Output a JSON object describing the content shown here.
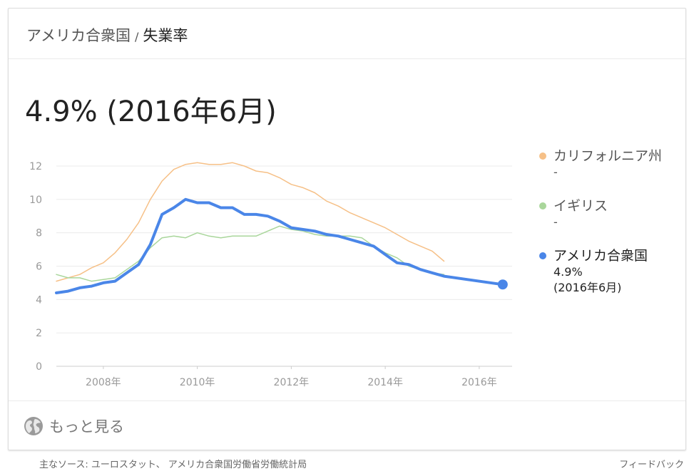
{
  "header": {
    "breadcrumb_country": "アメリカ合衆国",
    "separator": "/",
    "breadcrumb_metric": "失業率"
  },
  "headline_value": "4.9% (2016年6月)",
  "legend": [
    {
      "name": "カリフォルニア州",
      "value": "-",
      "color": "#f6c087"
    },
    {
      "name": "イギリス",
      "value": "-",
      "color": "#a9d69b"
    },
    {
      "name": "アメリカ合衆国",
      "value": "4.9%",
      "value_date": "(2016年6月)",
      "color": "#4a86e8"
    }
  ],
  "footer": {
    "more_label": "もっと見る",
    "source": "主なソース: ユーロスタット、 アメリカ合衆国労働省労働統計局",
    "feedback": "フィードバック"
  },
  "chart_data": {
    "type": "line",
    "title": "",
    "xlabel": "",
    "ylabel": "",
    "ylim": [
      0,
      12
    ],
    "xlim": [
      2007.0,
      2016.7
    ],
    "yticks": [
      "0",
      "2",
      "4",
      "6",
      "8",
      "10",
      "12"
    ],
    "xticks": [
      "2008年",
      "2010年",
      "2012年",
      "2014年",
      "2016年"
    ],
    "xtick_values": [
      2008,
      2010,
      2012,
      2014,
      2016
    ],
    "grid": true,
    "series": [
      {
        "name": "カリフォルニア州",
        "color": "#f6c087",
        "x": [
          2007.0,
          2007.25,
          2007.5,
          2007.75,
          2008.0,
          2008.25,
          2008.5,
          2008.75,
          2009.0,
          2009.25,
          2009.5,
          2009.75,
          2010.0,
          2010.25,
          2010.5,
          2010.75,
          2011.0,
          2011.25,
          2011.5,
          2011.75,
          2012.0,
          2012.25,
          2012.5,
          2012.75,
          2013.0,
          2013.25,
          2013.5,
          2013.75,
          2014.0,
          2014.25,
          2014.5,
          2014.75,
          2015.0,
          2015.25
        ],
        "y": [
          5.1,
          5.3,
          5.5,
          5.9,
          6.2,
          6.8,
          7.6,
          8.6,
          10.0,
          11.1,
          11.8,
          12.1,
          12.2,
          12.1,
          12.1,
          12.2,
          12.0,
          11.7,
          11.6,
          11.3,
          10.9,
          10.7,
          10.4,
          9.9,
          9.6,
          9.2,
          8.9,
          8.6,
          8.3,
          7.9,
          7.5,
          7.2,
          6.9,
          6.3
        ]
      },
      {
        "name": "イギリス",
        "color": "#a9d69b",
        "x": [
          2007.0,
          2007.25,
          2007.5,
          2007.75,
          2008.0,
          2008.25,
          2008.5,
          2008.75,
          2009.0,
          2009.25,
          2009.5,
          2009.75,
          2010.0,
          2010.25,
          2010.5,
          2010.75,
          2011.0,
          2011.25,
          2011.5,
          2011.75,
          2012.0,
          2012.25,
          2012.5,
          2012.75,
          2013.0,
          2013.25,
          2013.5,
          2013.75,
          2014.0,
          2014.25,
          2014.5,
          2014.75,
          2015.0,
          2015.25
        ],
        "y": [
          5.5,
          5.3,
          5.3,
          5.1,
          5.2,
          5.3,
          5.8,
          6.3,
          7.1,
          7.7,
          7.8,
          7.7,
          8.0,
          7.8,
          7.7,
          7.8,
          7.8,
          7.8,
          8.1,
          8.4,
          8.2,
          8.1,
          7.9,
          7.8,
          7.8,
          7.8,
          7.7,
          7.2,
          6.8,
          6.5,
          6.0,
          5.8,
          5.6,
          5.5
        ]
      },
      {
        "name": "アメリカ合衆国",
        "color": "#4a86e8",
        "x": [
          2007.0,
          2007.25,
          2007.5,
          2007.75,
          2008.0,
          2008.25,
          2008.5,
          2008.75,
          2009.0,
          2009.25,
          2009.5,
          2009.75,
          2010.0,
          2010.25,
          2010.5,
          2010.75,
          2011.0,
          2011.25,
          2011.5,
          2011.75,
          2012.0,
          2012.25,
          2012.5,
          2012.75,
          2013.0,
          2013.25,
          2013.5,
          2013.75,
          2014.0,
          2014.25,
          2014.5,
          2014.75,
          2015.0,
          2015.25,
          2016.5
        ],
        "y": [
          4.4,
          4.5,
          4.7,
          4.8,
          5.0,
          5.1,
          5.6,
          6.1,
          7.3,
          9.1,
          9.5,
          10.0,
          9.8,
          9.8,
          9.5,
          9.5,
          9.1,
          9.1,
          9.0,
          8.7,
          8.3,
          8.2,
          8.1,
          7.9,
          7.8,
          7.6,
          7.4,
          7.2,
          6.7,
          6.2,
          6.1,
          5.8,
          5.6,
          5.4,
          4.9
        ]
      }
    ],
    "highlight_point": {
      "series": "アメリカ合衆国",
      "x": 2016.5,
      "y": 4.9
    }
  }
}
